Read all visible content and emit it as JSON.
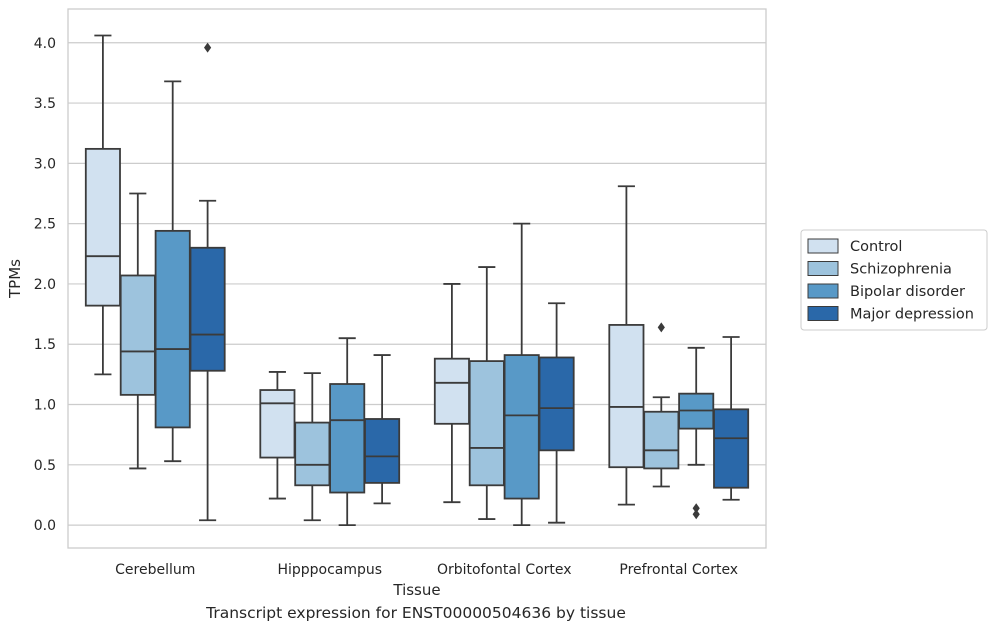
{
  "caption": "Transcript expression for ENST00000504636 by tissue",
  "chart_data": {
    "type": "box",
    "xlabel": "Tissue",
    "ylabel": "TPMs",
    "ylim": [
      -0.19,
      4.28
    ],
    "yticks": [
      "0.0",
      "0.5",
      "1.0",
      "1.5",
      "2.0",
      "2.5",
      "3.0",
      "3.5",
      "4.0"
    ],
    "grid": "horizontal",
    "legend_position": "right",
    "categories": [
      "Cerebellum",
      "Hipppocampus",
      "Orbitofontal Cortex",
      "Prefrontal Cortex"
    ],
    "series": [
      {
        "name": "Control",
        "color": "#d1e1f0",
        "boxes": [
          {
            "whisker_low": 1.25,
            "q1": 1.82,
            "median": 2.23,
            "q3": 3.12,
            "whisker_high": 4.06,
            "outliers": []
          },
          {
            "whisker_low": 0.22,
            "q1": 0.56,
            "median": 1.01,
            "q3": 1.12,
            "whisker_high": 1.27,
            "outliers": []
          },
          {
            "whisker_low": 0.19,
            "q1": 0.84,
            "median": 1.18,
            "q3": 1.38,
            "whisker_high": 2.0,
            "outliers": []
          },
          {
            "whisker_low": 0.17,
            "q1": 0.48,
            "median": 0.98,
            "q3": 1.66,
            "whisker_high": 2.81,
            "outliers": []
          }
        ]
      },
      {
        "name": "Schizophrenia",
        "color": "#9dc3dd",
        "boxes": [
          {
            "whisker_low": 0.47,
            "q1": 1.08,
            "median": 1.44,
            "q3": 2.07,
            "whisker_high": 2.75,
            "outliers": []
          },
          {
            "whisker_low": 0.04,
            "q1": 0.33,
            "median": 0.5,
            "q3": 0.85,
            "whisker_high": 1.26,
            "outliers": []
          },
          {
            "whisker_low": 0.05,
            "q1": 0.33,
            "median": 0.64,
            "q3": 1.36,
            "whisker_high": 2.14,
            "outliers": []
          },
          {
            "whisker_low": 0.32,
            "q1": 0.47,
            "median": 0.62,
            "q3": 0.94,
            "whisker_high": 1.06,
            "outliers": [
              1.64
            ]
          }
        ]
      },
      {
        "name": "Bipolar disorder",
        "color": "#5899c7",
        "boxes": [
          {
            "whisker_low": 0.53,
            "q1": 0.81,
            "median": 1.46,
            "q3": 2.44,
            "whisker_high": 3.68,
            "outliers": []
          },
          {
            "whisker_low": 0.0,
            "q1": 0.27,
            "median": 0.87,
            "q3": 1.17,
            "whisker_high": 1.55,
            "outliers": []
          },
          {
            "whisker_low": 0.0,
            "q1": 0.22,
            "median": 0.91,
            "q3": 1.41,
            "whisker_high": 2.5,
            "outliers": []
          },
          {
            "whisker_low": 0.5,
            "q1": 0.8,
            "median": 0.95,
            "q3": 1.09,
            "whisker_high": 1.47,
            "outliers": [
              0.09,
              0.14
            ]
          }
        ]
      },
      {
        "name": "Major depression",
        "color": "#2a68a9",
        "boxes": [
          {
            "whisker_low": 0.04,
            "q1": 1.28,
            "median": 1.58,
            "q3": 2.3,
            "whisker_high": 2.69,
            "outliers": [
              3.96
            ]
          },
          {
            "whisker_low": 0.18,
            "q1": 0.35,
            "median": 0.57,
            "q3": 0.88,
            "whisker_high": 1.41,
            "outliers": []
          },
          {
            "whisker_low": 0.02,
            "q1": 0.62,
            "median": 0.97,
            "q3": 1.39,
            "whisker_high": 1.84,
            "outliers": []
          },
          {
            "whisker_low": 0.21,
            "q1": 0.31,
            "median": 0.72,
            "q3": 0.96,
            "whisker_high": 1.56,
            "outliers": []
          }
        ]
      }
    ]
  }
}
